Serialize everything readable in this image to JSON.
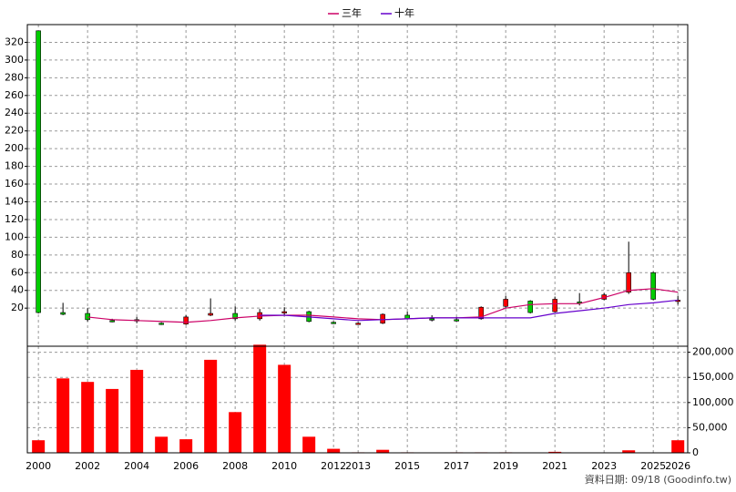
{
  "chart_data": [
    {
      "type": "candlestick",
      "x": [
        2000,
        2001,
        2002,
        2003,
        2004,
        2005,
        2006,
        2007,
        2008,
        2009,
        2010,
        2011,
        2012,
        2013,
        2014,
        2015,
        2016,
        2017,
        2018,
        2019,
        2020,
        2021,
        2022,
        2023,
        2024,
        2025,
        2026
      ],
      "open": [
        333,
        15,
        14,
        6,
        7,
        3,
        2,
        12,
        14,
        8,
        15,
        16,
        4,
        3,
        3,
        12,
        8,
        7,
        8,
        22,
        28,
        16,
        27,
        30,
        38,
        60,
        28
      ],
      "high": [
        333,
        26,
        20,
        8,
        10,
        4,
        12,
        31,
        22,
        19,
        21,
        17,
        5,
        4,
        14,
        16,
        12,
        10,
        22,
        34,
        29,
        33,
        37,
        37,
        95,
        61,
        34
      ],
      "low": [
        14,
        12,
        5,
        4,
        3,
        1,
        1,
        11,
        6,
        6,
        12,
        4,
        2,
        2,
        2,
        7,
        5,
        5,
        7,
        20,
        14,
        15,
        23,
        29,
        36,
        29,
        24
      ],
      "close": [
        15,
        13,
        7,
        5,
        6,
        2,
        10,
        14,
        8,
        15,
        16,
        5,
        3,
        3,
        13,
        8,
        7,
        6,
        21,
        30,
        15,
        30,
        26,
        35,
        60,
        30,
        29
      ],
      "up_color": "#ff0000",
      "down_color": "#00cc00",
      "series": [
        {
          "name": "三年",
          "color": "#cc0066",
          "values": [
            null,
            null,
            10,
            7,
            6,
            5,
            4,
            6,
            9,
            11,
            12,
            12,
            10,
            8,
            7,
            8,
            9,
            9,
            10,
            20,
            24,
            25,
            25,
            32,
            40,
            42,
            38
          ]
        },
        {
          "name": "十年",
          "color": "#6600cc",
          "values": [
            null,
            null,
            null,
            null,
            null,
            null,
            null,
            null,
            null,
            12,
            12,
            10,
            8,
            6,
            7,
            8,
            9,
            9,
            9,
            9,
            9,
            14,
            17,
            20,
            24,
            26,
            29
          ]
        }
      ],
      "xlim": [
        1999.55,
        2026.4
      ],
      "xticks": [
        2000,
        2002,
        2004,
        2006,
        2008,
        2010,
        2012,
        2013,
        2015,
        2017,
        2019,
        2021,
        2023,
        2025,
        2026
      ],
      "ylim": [
        -23,
        340
      ],
      "yticks": [
        20,
        40,
        60,
        80,
        100,
        120,
        140,
        160,
        180,
        200,
        220,
        240,
        260,
        280,
        300,
        320
      ],
      "grid": true,
      "legend": "top"
    },
    {
      "type": "bar",
      "x": [
        2000,
        2001,
        2002,
        2003,
        2004,
        2005,
        2006,
        2007,
        2008,
        2009,
        2010,
        2011,
        2012,
        2013,
        2014,
        2015,
        2016,
        2017,
        2018,
        2019,
        2020,
        2021,
        2022,
        2023,
        2024,
        2025,
        2026
      ],
      "values": [
        25000,
        148000,
        141000,
        127000,
        165000,
        32000,
        27000,
        185000,
        81000,
        215000,
        175000,
        32000,
        8000,
        1000,
        6000,
        1000,
        500,
        1000,
        1000,
        1000,
        500,
        2000,
        500,
        500,
        5000,
        500,
        25000
      ],
      "color": "#ff0000",
      "xlim": [
        1999.55,
        2026.4
      ],
      "xticks": [
        2000,
        2002,
        2004,
        2006,
        2008,
        2010,
        2012,
        2013,
        2015,
        2017,
        2019,
        2021,
        2023,
        2025,
        2026
      ],
      "ylim": [
        0,
        212000
      ],
      "yticks": [
        0,
        {
          "value": 50000,
          "label": "50,000"
        },
        {
          "value": 100000,
          "label": "100,000"
        },
        {
          "value": 150000,
          "label": "150,000"
        },
        {
          "value": 200000,
          "label": "200,000"
        }
      ],
      "grid": true
    }
  ],
  "footer": "資料日期: 09/18 (Goodinfo.tw)"
}
